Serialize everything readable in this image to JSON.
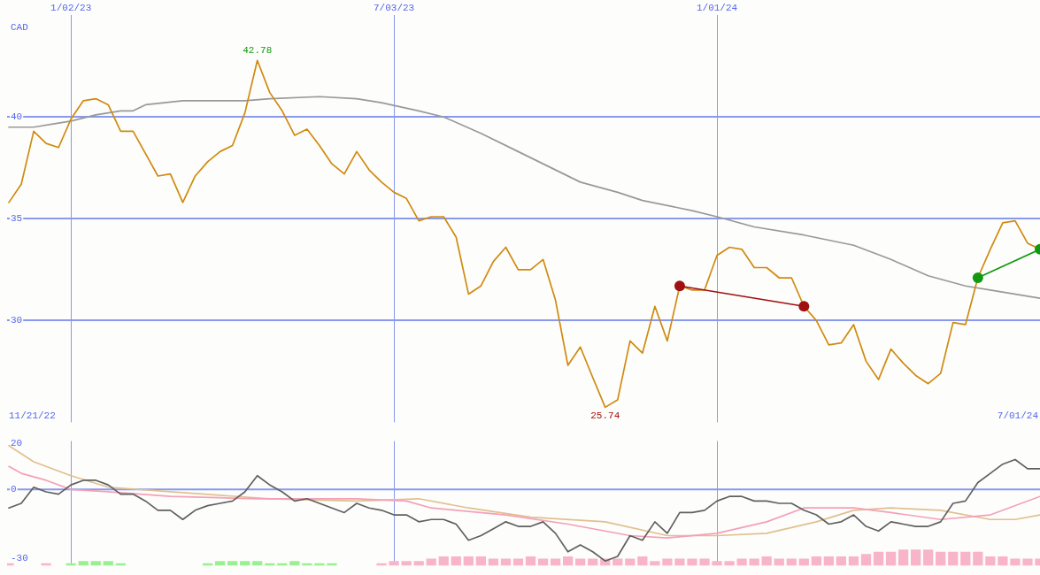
{
  "chart_data": [
    {
      "type": "line",
      "ylabel": "CAD",
      "xlim": [
        "2022-11-27",
        "2024-07-01"
      ],
      "xticks": [
        {
          "value": "2023-01-02",
          "label": "1/02/23"
        },
        {
          "value": "2023-07-03",
          "label": "7/03/23"
        },
        {
          "value": "2024-01-01",
          "label": "1/01/24"
        }
      ],
      "ylim": [
        25,
        45
      ],
      "yticks": [
        30,
        35,
        40
      ],
      "grid": true,
      "annotations": [
        {
          "text": "42.78",
          "x": "2023-04-17",
          "y": 42.78
        },
        {
          "text": "25.74",
          "x": "2023-10-30",
          "y": 25.74
        },
        "11/21/22",
        "7/01/24"
      ],
      "x": [
        "2022-11-28",
        "2022-12-05",
        "2022-12-12",
        "2022-12-19",
        "2022-12-26",
        "2023-01-02",
        "2023-01-09",
        "2023-01-16",
        "2023-01-23",
        "2023-01-30",
        "2023-02-06",
        "2023-02-13",
        "2023-02-20",
        "2023-02-27",
        "2023-03-06",
        "2023-03-13",
        "2023-03-20",
        "2023-03-27",
        "2023-04-03",
        "2023-04-10",
        "2023-04-17",
        "2023-04-24",
        "2023-05-01",
        "2023-05-08",
        "2023-05-15",
        "2023-05-22",
        "2023-05-29",
        "2023-06-05",
        "2023-06-12",
        "2023-06-19",
        "2023-06-26",
        "2023-07-03",
        "2023-07-10",
        "2023-07-17",
        "2023-07-24",
        "2023-07-31",
        "2023-08-07",
        "2023-08-14",
        "2023-08-21",
        "2023-08-28",
        "2023-09-04",
        "2023-09-11",
        "2023-09-18",
        "2023-09-25",
        "2023-10-02",
        "2023-10-09",
        "2023-10-16",
        "2023-10-23",
        "2023-10-30",
        "2023-11-06",
        "2023-11-13",
        "2023-11-20",
        "2023-11-27",
        "2023-12-04",
        "2023-12-11",
        "2023-12-18",
        "2023-12-25",
        "2024-01-01",
        "2024-01-08",
        "2024-01-15",
        "2024-01-22",
        "2024-01-29",
        "2024-02-05",
        "2024-02-12",
        "2024-02-19",
        "2024-02-26",
        "2024-03-04",
        "2024-03-11",
        "2024-03-18",
        "2024-03-25",
        "2024-04-01",
        "2024-04-08",
        "2024-04-15",
        "2024-04-22",
        "2024-04-29",
        "2024-05-06",
        "2024-05-13",
        "2024-05-20",
        "2024-05-27",
        "2024-06-03",
        "2024-06-10",
        "2024-06-17",
        "2024-06-24",
        "2024-07-01"
      ],
      "series": [
        {
          "color": "#999999",
          "x": [
            "2022-11-28",
            "2022-12-05",
            "2022-12-12",
            "2022-12-26",
            "2023-01-02",
            "2023-01-16",
            "2023-01-30",
            "2023-02-06",
            "2023-02-13",
            "2023-03-06",
            "2023-03-20",
            "2023-04-10",
            "2023-04-24",
            "2023-05-22",
            "2023-06-12",
            "2023-06-26",
            "2023-07-17",
            "2023-07-31",
            "2023-08-21",
            "2023-09-11",
            "2023-10-16",
            "2023-11-06",
            "2023-11-20",
            "2023-12-18",
            "2024-01-01",
            "2024-01-22",
            "2024-02-19",
            "2024-03-18",
            "2024-04-08",
            "2024-04-29",
            "2024-05-20",
            "2024-06-03",
            "2024-07-01"
          ],
          "values": [
            39.5,
            39.5,
            39.5,
            39.7,
            39.8,
            40.1,
            40.3,
            40.3,
            40.6,
            40.8,
            40.8,
            40.8,
            40.9,
            41.0,
            40.9,
            40.7,
            40.3,
            40.0,
            39.2,
            38.3,
            36.8,
            36.3,
            35.9,
            35.4,
            35.1,
            34.6,
            34.2,
            33.7,
            33.0,
            32.2,
            31.7,
            31.5,
            31.1
          ]
        },
        {
          "color": "#d08a10",
          "values": [
            35.8,
            36.7,
            39.3,
            38.7,
            38.5,
            39.9,
            40.8,
            40.9,
            40.6,
            39.3,
            39.3,
            38.2,
            37.1,
            37.2,
            35.8,
            37.1,
            37.8,
            38.3,
            38.6,
            40.2,
            42.78,
            41.2,
            40.3,
            39.1,
            39.4,
            38.6,
            37.7,
            37.2,
            38.3,
            37.4,
            36.8,
            36.3,
            36.0,
            34.9,
            35.1,
            35.1,
            34.1,
            31.3,
            31.7,
            32.9,
            33.6,
            32.5,
            32.5,
            33.0,
            31.0,
            27.8,
            28.7,
            27.2,
            25.74,
            26.1,
            29.0,
            28.4,
            30.7,
            29.0,
            31.7,
            31.5,
            31.5,
            33.2,
            33.6,
            33.5,
            32.6,
            32.6,
            32.1,
            32.1,
            30.7,
            30.0,
            28.8,
            28.9,
            29.8,
            28.0,
            27.1,
            28.6,
            27.9,
            27.3,
            26.9,
            27.4,
            29.9,
            29.8,
            32.1,
            33.5,
            34.8,
            34.9,
            33.8,
            33.5
          ]
        },
        {
          "color": "#a01010",
          "marker": "circle",
          "x": [
            "2023-12-11",
            "2024-02-19"
          ],
          "values": [
            31.7,
            30.7
          ]
        },
        {
          "color": "#119911",
          "marker": "circle",
          "x": [
            "2024-05-27",
            "2024-07-01"
          ],
          "values": [
            32.1,
            33.5
          ]
        }
      ]
    },
    {
      "type": "line",
      "xlim": [
        "2022-11-27",
        "2024-07-01"
      ],
      "xticks": [
        {
          "value": "2023-01-02",
          "label": null
        },
        {
          "value": "2023-07-03",
          "label": null
        },
        {
          "value": "2024-01-01",
          "label": null
        }
      ],
      "tick_labels": "y",
      "ylim": [
        -33,
        21
      ],
      "yticks": [
        -30,
        0,
        20
      ],
      "grid": "x",
      "ref_lines": [
        {
          "axis": "y",
          "value": 0
        }
      ],
      "x": [
        "2022-11-28",
        "2022-12-05",
        "2022-12-12",
        "2022-12-19",
        "2022-12-26",
        "2023-01-02",
        "2023-01-09",
        "2023-01-16",
        "2023-01-23",
        "2023-01-30",
        "2023-02-06",
        "2023-02-13",
        "2023-02-20",
        "2023-02-27",
        "2023-03-06",
        "2023-03-13",
        "2023-03-20",
        "2023-03-27",
        "2023-04-03",
        "2023-04-10",
        "2023-04-17",
        "2023-04-24",
        "2023-05-01",
        "2023-05-08",
        "2023-05-15",
        "2023-05-22",
        "2023-05-29",
        "2023-06-05",
        "2023-06-12",
        "2023-06-19",
        "2023-06-26",
        "2023-07-03",
        "2023-07-10",
        "2023-07-17",
        "2023-07-24",
        "2023-07-31",
        "2023-08-07",
        "2023-08-14",
        "2023-08-21",
        "2023-08-28",
        "2023-09-04",
        "2023-09-11",
        "2023-09-18",
        "2023-09-25",
        "2023-10-02",
        "2023-10-09",
        "2023-10-16",
        "2023-10-23",
        "2023-10-30",
        "2023-11-06",
        "2023-11-13",
        "2023-11-20",
        "2023-11-27",
        "2023-12-04",
        "2023-12-11",
        "2023-12-18",
        "2023-12-25",
        "2024-01-01",
        "2024-01-08",
        "2024-01-15",
        "2024-01-22",
        "2024-01-29",
        "2024-02-05",
        "2024-02-12",
        "2024-02-19",
        "2024-02-26",
        "2024-03-04",
        "2024-03-11",
        "2024-03-18",
        "2024-03-25",
        "2024-04-01",
        "2024-04-08",
        "2024-04-15",
        "2024-04-22",
        "2024-04-29",
        "2024-05-06",
        "2024-05-13",
        "2024-05-20",
        "2024-05-27",
        "2024-06-03",
        "2024-06-10",
        "2024-06-17",
        "2024-06-24",
        "2024-07-01"
      ],
      "series": [
        {
          "type": "bar",
          "colors": [
            "#f8b4c8",
            "#f8b4c8",
            "#f8b4c8",
            "#f8b4c8",
            "#f8b4c8",
            "#99f090",
            "#99f090",
            "#99f090",
            "#99f090",
            "#99f090",
            "#f8b4c8",
            "#f8b4c8",
            "#f8b4c8",
            "#f8b4c8",
            "#f8b4c8",
            "#f8b4c8",
            "#99f090",
            "#99f090",
            "#99f090",
            "#99f090",
            "#99f090",
            "#99f090",
            "#99f090",
            "#99f090",
            "#99f090",
            "#99f090",
            "#99f090",
            "#f8b4c8",
            "#f8b4c8",
            "#f8b4c8",
            "#f8b4c8",
            "#f8b4c8",
            "#f8b4c8",
            "#f8b4c8",
            "#f8b4c8",
            "#f8b4c8",
            "#f8b4c8",
            "#f8b4c8",
            "#f8b4c8",
            "#f8b4c8",
            "#f8b4c8",
            "#f8b4c8",
            "#f8b4c8",
            "#f8b4c8",
            "#f8b4c8",
            "#f8b4c8",
            "#f8b4c8",
            "#f8b4c8",
            "#f8b4c8",
            "#f8b4c8",
            "#f8b4c8",
            "#f8b4c8",
            "#f8b4c8",
            "#f8b4c8",
            "#f8b4c8",
            "#f8b4c8",
            "#f8b4c8",
            "#f8b4c8",
            "#f8b4c8",
            "#f8b4c8",
            "#f8b4c8",
            "#f8b4c8",
            "#f8b4c8",
            "#f8b4c8",
            "#f8b4c8",
            "#f8b4c8",
            "#f8b4c8",
            "#f8b4c8",
            "#f8b4c8",
            "#f8b4c8",
            "#f8b4c8",
            "#f8b4c8",
            "#f8b4c8",
            "#f8b4c8",
            "#f8b4c8",
            "#f8b4c8",
            "#f8b4c8",
            "#f8b4c8",
            "#f8b4c8",
            "#f8b4c8",
            "#f8b4c8",
            "#f8b4c8",
            "#f8b4c8",
            "#f8b4c8"
          ],
          "base": [
            -33,
            null,
            null,
            -33,
            null,
            -33,
            -33,
            -33,
            -33,
            -33,
            null,
            null,
            null,
            null,
            null,
            null,
            -33,
            -33,
            -33,
            -33,
            -33,
            -33,
            -33,
            -33,
            -33,
            -33,
            -33,
            null,
            null,
            null,
            -33,
            -33,
            -33,
            -33,
            -33,
            -33,
            -33,
            -33,
            -33,
            -33,
            -33,
            -33,
            -33,
            -33,
            -33,
            -33,
            -33,
            -33,
            -33,
            -33,
            -33,
            -33,
            -33,
            -33,
            -33,
            -33,
            -33,
            -33,
            -33,
            -33,
            -33,
            -33,
            -33,
            -33,
            -33,
            -33,
            -33,
            -33,
            -33,
            -33,
            -33,
            -33,
            -33,
            -33,
            -33,
            -33,
            -33,
            -33,
            -33,
            -33,
            -33,
            -33,
            -33,
            -33
          ],
          "values": [
            1,
            null,
            null,
            1,
            null,
            1,
            2,
            2,
            2,
            1,
            null,
            null,
            null,
            null,
            null,
            null,
            1,
            2,
            2,
            2,
            2,
            1,
            1,
            2,
            1,
            1,
            1,
            null,
            null,
            null,
            1,
            2,
            2,
            2,
            3,
            4,
            4,
            4,
            4,
            3,
            3,
            3,
            4,
            3,
            3,
            4,
            3,
            3,
            3,
            3,
            3,
            4,
            2,
            3,
            3,
            3,
            3,
            2,
            2,
            3,
            3,
            4,
            3,
            3,
            3,
            4,
            4,
            4,
            4,
            5,
            6,
            6,
            7,
            7,
            7,
            6,
            6,
            6,
            6,
            4,
            4,
            3,
            3,
            3
          ]
        },
        {
          "color": "#e0c090",
          "x": [
            "2022-11-28",
            "2022-12-12",
            "2023-01-02",
            "2023-01-23",
            "2023-02-27",
            "2023-04-24",
            "2023-06-12",
            "2023-07-17",
            "2023-08-14",
            "2023-09-18",
            "2023-10-30",
            "2023-12-04",
            "2024-01-01",
            "2024-01-29",
            "2024-02-26",
            "2024-03-18",
            "2024-04-08",
            "2024-05-06",
            "2024-06-03",
            "2024-06-17",
            "2024-07-01"
          ],
          "values": [
            19,
            12,
            6,
            1,
            -1,
            -4,
            -5,
            -4,
            -8,
            -12,
            -14,
            -20,
            -20,
            -19,
            -14,
            -9,
            -8,
            -9,
            -13,
            -13,
            -11
          ]
        },
        {
          "color": "#f4a0b8",
          "x": [
            "2022-11-28",
            "2022-12-05",
            "2022-12-19",
            "2023-01-02",
            "2023-01-23",
            "2023-02-27",
            "2023-04-17",
            "2023-05-08",
            "2023-06-12",
            "2023-07-10",
            "2023-07-24",
            "2023-09-04",
            "2023-10-09",
            "2023-11-13",
            "2023-12-04",
            "2024-01-01",
            "2024-01-29",
            "2024-02-19",
            "2024-03-18",
            "2024-04-08",
            "2024-05-06",
            "2024-06-03",
            "2024-07-01"
          ],
          "values": [
            10,
            7,
            4,
            0,
            -1,
            -3,
            -4,
            -4,
            -4,
            -5,
            -8,
            -11,
            -15,
            -20,
            -21,
            -19,
            -14,
            -8,
            -8,
            -10,
            -13,
            -11,
            -3
          ]
        },
        {
          "color": "#606060",
          "values": [
            -8,
            -6,
            1,
            -1,
            -2,
            2,
            4,
            4,
            2,
            -2,
            -2,
            -5,
            -9,
            -9,
            -13,
            -9,
            -7,
            -6,
            -5,
            -1,
            6,
            2,
            -1,
            -5,
            -4,
            -6,
            -8,
            -10,
            -6,
            -8,
            -9,
            -11,
            -11,
            -14,
            -13,
            -13,
            -15,
            -22,
            -20,
            -17,
            -14,
            -16,
            -16,
            -14,
            -19,
            -27,
            -24,
            -27,
            -31,
            -29,
            -20,
            -22,
            -14,
            -19,
            -10,
            -10,
            -9,
            -5,
            -3,
            -3,
            -5,
            -5,
            -6,
            -6,
            -9,
            -11,
            -15,
            -14,
            -11,
            -16,
            -18,
            -14,
            -15,
            -16,
            -16,
            -14,
            -6,
            -5,
            3,
            7,
            11,
            13,
            9,
            9
          ]
        }
      ]
    }
  ]
}
